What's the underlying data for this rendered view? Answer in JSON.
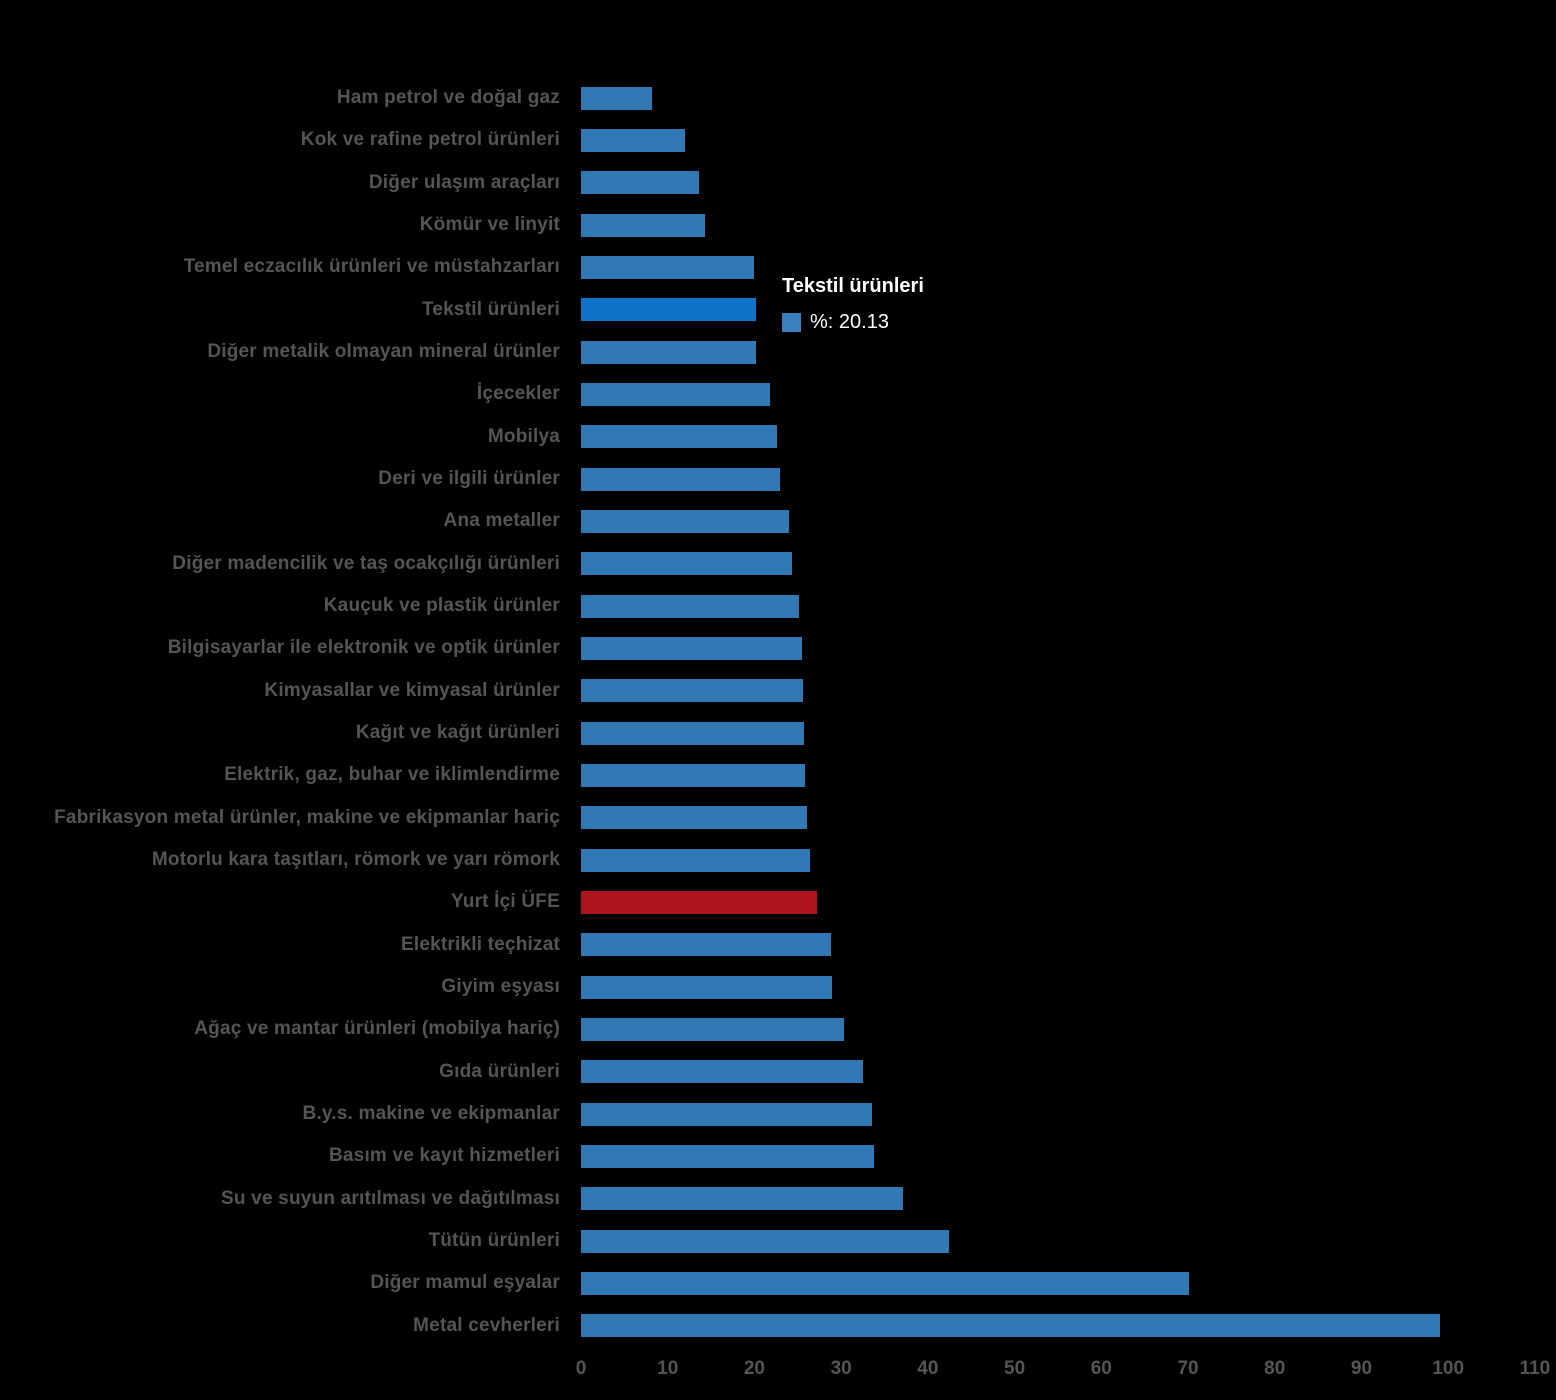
{
  "chart_data": {
    "type": "bar",
    "orientation": "horizontal",
    "title": "",
    "xlabel": "",
    "ylabel": "",
    "xlim": [
      0,
      110
    ],
    "x_ticks": [
      0,
      10,
      20,
      30,
      40,
      50,
      60,
      70,
      80,
      90,
      100,
      110
    ],
    "grid": false,
    "legend": false,
    "categories": [
      "Ham petrol ve doğal gaz",
      "Kok ve rafine petrol ürünleri",
      "Diğer ulaşım araçları",
      "Kömür ve linyit",
      "Temel eczacılık ürünleri ve müstahzarları",
      "Tekstil ürünleri",
      "Diğer metalik olmayan mineral ürünler",
      "İçecekler",
      "Mobilya",
      "Deri ve ilgili ürünler",
      "Ana metaller",
      "Diğer madencilik ve taş ocakçılığı ürünleri",
      "Kauçuk ve plastik ürünler",
      "Bilgisayarlar ile elektronik ve optik ürünler",
      "Kimyasallar ve kimyasal ürünler",
      "Kağıt ve kağıt ürünleri",
      "Elektrik, gaz, buhar ve iklimlendirme",
      "Fabrikasyon metal ürünler, makine ve ekipmanlar hariç",
      "Motorlu kara taşıtları, römork ve yarı römork",
      "Yurt İçi ÜFE",
      "Elektrikli teçhizat",
      "Giyim eşyası",
      "Ağaç ve mantar ürünleri (mobilya hariç)",
      "Gıda ürünleri",
      "B.y.s. makine ve ekipmanlar",
      "Basım ve kayıt hizmetleri",
      "Su ve suyun arıtılması ve dağıtılması",
      "Tütün ürünleri",
      "Diğer mamul eşyalar",
      "Metal cevherleri"
    ],
    "values": [
      8.2,
      12.0,
      13.6,
      14.3,
      20.0,
      20.13,
      20.2,
      21.8,
      22.6,
      22.9,
      24.0,
      24.3,
      25.1,
      25.5,
      25.6,
      25.7,
      25.8,
      26.1,
      26.4,
      27.2,
      28.8,
      28.9,
      30.3,
      32.5,
      33.5,
      33.8,
      37.1,
      42.4,
      70.1,
      99.0
    ],
    "highlight_category": "Tekstil ürünleri",
    "reference_category": "Yurt İçi ÜFE"
  },
  "tooltip": {
    "title": "Tekstil ürünleri",
    "value_label": "%: 20.13"
  },
  "colors": {
    "background": "#000000",
    "bar": "#3179B5",
    "bar_highlight": "#0E73C9",
    "bar_reference": "#AE141E",
    "label_text": "#555555",
    "tick_text": "#555555",
    "tooltip_text": "#FFFFFF",
    "tooltip_swatch": "#3A80BE"
  }
}
